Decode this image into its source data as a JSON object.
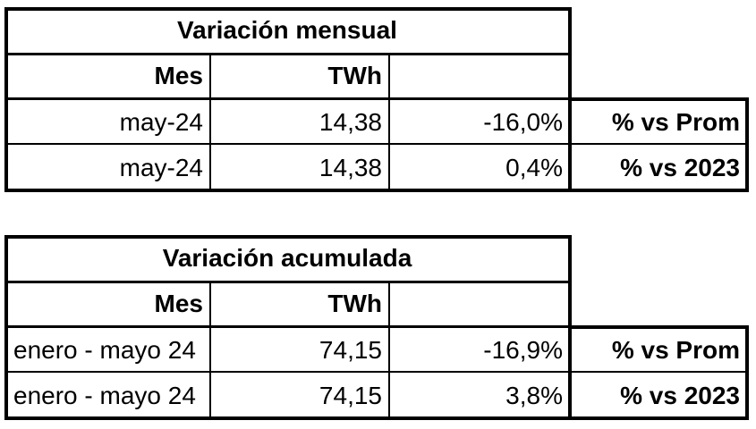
{
  "tables": [
    {
      "title": "Variación mensual",
      "header": [
        "Mes",
        "TWh"
      ],
      "rows": [
        [
          "may-24",
          "14,38",
          "-16,0%",
          "% vs Prom"
        ],
        [
          "may-24",
          "14,38",
          "0,4%",
          "% vs 2023"
        ]
      ]
    },
    {
      "title": "Variación acumulada",
      "header": [
        "Mes",
        "TWh"
      ],
      "rows": [
        [
          "enero - mayo 24",
          "74,15",
          "-16,9%",
          "% vs Prom"
        ],
        [
          "enero - mayo 24",
          "74,15",
          "3,8%",
          "% vs 2023"
        ]
      ]
    }
  ]
}
